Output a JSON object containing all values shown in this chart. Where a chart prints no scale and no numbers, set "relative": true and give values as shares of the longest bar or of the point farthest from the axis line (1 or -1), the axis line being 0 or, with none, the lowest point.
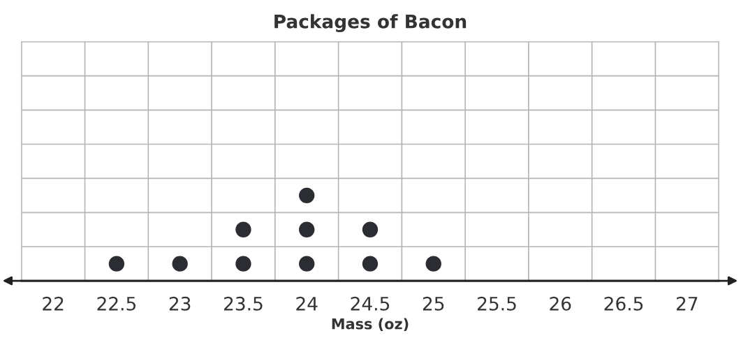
{
  "chart_data": {
    "type": "scatter",
    "title": "Packages of Bacon",
    "xlabel": "Mass (oz)",
    "x": [
      22.5,
      23,
      23.5,
      23.5,
      24,
      24,
      24,
      24.5,
      24.5,
      25
    ],
    "series": [
      {
        "color": "#2b2d33",
        "values": [
          0.2,
          0.2,
          0.2,
          0.6,
          0.2,
          0.6,
          1,
          0.2,
          0.6,
          0.2
        ]
      }
    ],
    "relative": true,
    "marker": "circle",
    "xlim": [
      21.75,
      27.25
    ],
    "xticks": [
      22,
      22.5,
      23,
      23.5,
      24,
      24.5,
      25,
      25.5,
      26,
      26.5,
      27
    ],
    "grid": true
  }
}
